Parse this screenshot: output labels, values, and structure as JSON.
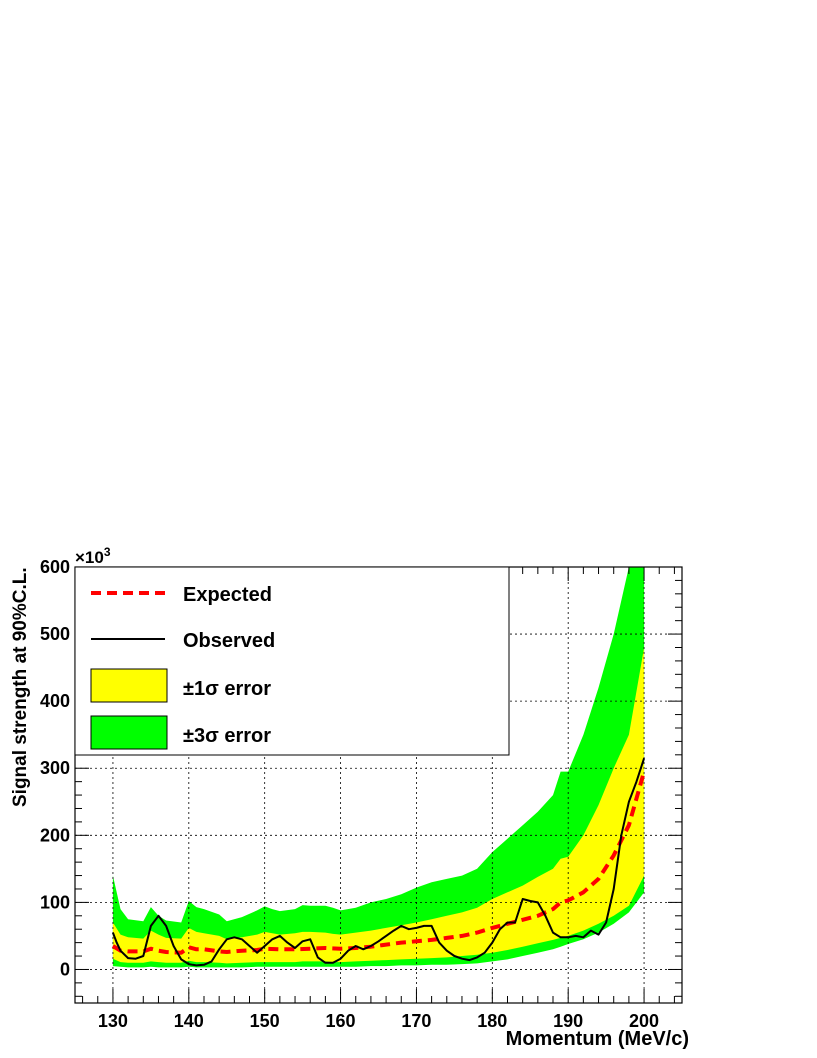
{
  "chart_data": {
    "type": "area",
    "xlabel": "Momentum (MeV/c)",
    "ylabel": "Signal strength at 90%C.L.",
    "y_multiplier": "×10",
    "y_multiplier_exp": "3",
    "xlim": [
      125,
      205
    ],
    "ylim": [
      -50,
      600
    ],
    "xticks": [
      130,
      140,
      150,
      160,
      170,
      180,
      190,
      200
    ],
    "yticks": [
      0,
      100,
      200,
      300,
      400,
      500,
      600
    ],
    "grid": true,
    "legend_position": "top-left",
    "legend": [
      {
        "label": "Expected",
        "color": "#ff0000",
        "style": "dashed"
      },
      {
        "label": "Observed",
        "color": "#000000",
        "style": "solid"
      },
      {
        "label": "±1σ error",
        "color": "#ffff00",
        "style": "fill"
      },
      {
        "label": "±3σ error",
        "color": "#00ff00",
        "style": "fill"
      }
    ],
    "series": [
      {
        "name": "±3σ error",
        "x": [
          130,
          131,
          132,
          134,
          135,
          136,
          137,
          139,
          140,
          141,
          142,
          144,
          145,
          147,
          149,
          150,
          151,
          152,
          154,
          155,
          156,
          158,
          159,
          160,
          162,
          164,
          166,
          168,
          170,
          172,
          174,
          176,
          178,
          180,
          182,
          184,
          186,
          188,
          189,
          190,
          192,
          194,
          196,
          198,
          200
        ],
        "upper": [
          140,
          90,
          75,
          72,
          93,
          80,
          73,
          70,
          102,
          93,
          90,
          82,
          72,
          78,
          88,
          94,
          90,
          87,
          90,
          96,
          95,
          95,
          92,
          88,
          92,
          100,
          105,
          112,
          122,
          130,
          135,
          140,
          150,
          175,
          195,
          215,
          235,
          260,
          295,
          295,
          350,
          420,
          500,
          600,
          600
        ],
        "lower": [
          5,
          4,
          3,
          3,
          4,
          3,
          3,
          3,
          4,
          3,
          3,
          3,
          3,
          3,
          4,
          4,
          4,
          4,
          4,
          4,
          4,
          4,
          4,
          4,
          4,
          5,
          5,
          6,
          6,
          7,
          7,
          8,
          9,
          12,
          15,
          20,
          25,
          30,
          34,
          38,
          45,
          55,
          68,
          85,
          115
        ]
      },
      {
        "name": "±1σ error",
        "x": [
          130,
          131,
          132,
          134,
          135,
          136,
          137,
          139,
          140,
          141,
          142,
          144,
          145,
          147,
          149,
          150,
          151,
          152,
          154,
          155,
          156,
          158,
          159,
          160,
          162,
          164,
          166,
          168,
          170,
          172,
          174,
          176,
          178,
          180,
          182,
          184,
          186,
          188,
          189,
          190,
          192,
          194,
          196,
          198,
          200
        ],
        "upper": [
          70,
          52,
          48,
          46,
          58,
          52,
          47,
          46,
          62,
          56,
          54,
          50,
          45,
          48,
          52,
          56,
          54,
          52,
          54,
          56,
          56,
          55,
          53,
          52,
          55,
          58,
          62,
          66,
          70,
          75,
          80,
          85,
          92,
          105,
          115,
          125,
          138,
          150,
          165,
          168,
          200,
          245,
          300,
          350,
          480
        ],
        "lower": [
          16,
          11,
          10,
          10,
          12,
          11,
          10,
          10,
          13,
          11,
          11,
          10,
          9,
          10,
          11,
          11,
          11,
          11,
          11,
          12,
          12,
          12,
          11,
          11,
          12,
          13,
          14,
          15,
          16,
          17,
          18,
          20,
          22,
          25,
          29,
          34,
          39,
          44,
          47,
          50,
          58,
          68,
          80,
          95,
          140
        ]
      },
      {
        "name": "Expected",
        "x": [
          130,
          131,
          132,
          134,
          135,
          136,
          137,
          139,
          140,
          141,
          142,
          144,
          145,
          147,
          149,
          150,
          152,
          154,
          156,
          158,
          160,
          162,
          164,
          166,
          168,
          170,
          172,
          174,
          176,
          178,
          180,
          182,
          184,
          186,
          188,
          189,
          190,
          192,
          194,
          196,
          198,
          200
        ],
        "values": [
          35,
          28,
          27,
          27,
          31,
          28,
          26,
          25,
          33,
          30,
          30,
          27,
          26,
          28,
          29,
          31,
          30,
          30,
          31,
          32,
          31,
          32,
          34,
          37,
          40,
          42,
          44,
          47,
          50,
          55,
          62,
          68,
          74,
          80,
          90,
          100,
          103,
          115,
          135,
          170,
          215,
          295
        ]
      },
      {
        "name": "Observed",
        "x": [
          130,
          130.5,
          131,
          132,
          133,
          134,
          135,
          136,
          137,
          138,
          139,
          140,
          140.5,
          141,
          142,
          143,
          144,
          145,
          146,
          147,
          148,
          149,
          150,
          151,
          152,
          153,
          154,
          155,
          156,
          157,
          158,
          159,
          160,
          161,
          162,
          163,
          164,
          165,
          166,
          167,
          168,
          169,
          170,
          171,
          172,
          173,
          174,
          175,
          176,
          177,
          178,
          179,
          180,
          181,
          182,
          183,
          184,
          185,
          186,
          187,
          188,
          189,
          190,
          191,
          192,
          193,
          194,
          195,
          196,
          197,
          198,
          199,
          200
        ],
        "values": [
          55,
          40,
          28,
          17,
          16,
          20,
          65,
          80,
          65,
          35,
          15,
          8,
          7,
          6,
          7,
          12,
          30,
          45,
          48,
          45,
          35,
          25,
          35,
          45,
          50,
          40,
          32,
          42,
          45,
          18,
          10,
          10,
          16,
          28,
          35,
          30,
          35,
          42,
          50,
          58,
          65,
          60,
          62,
          65,
          65,
          40,
          28,
          20,
          16,
          14,
          18,
          25,
          40,
          60,
          70,
          70,
          105,
          102,
          100,
          80,
          55,
          48,
          48,
          50,
          48,
          58,
          52,
          70,
          120,
          200,
          250,
          280,
          315
        ]
      }
    ]
  }
}
